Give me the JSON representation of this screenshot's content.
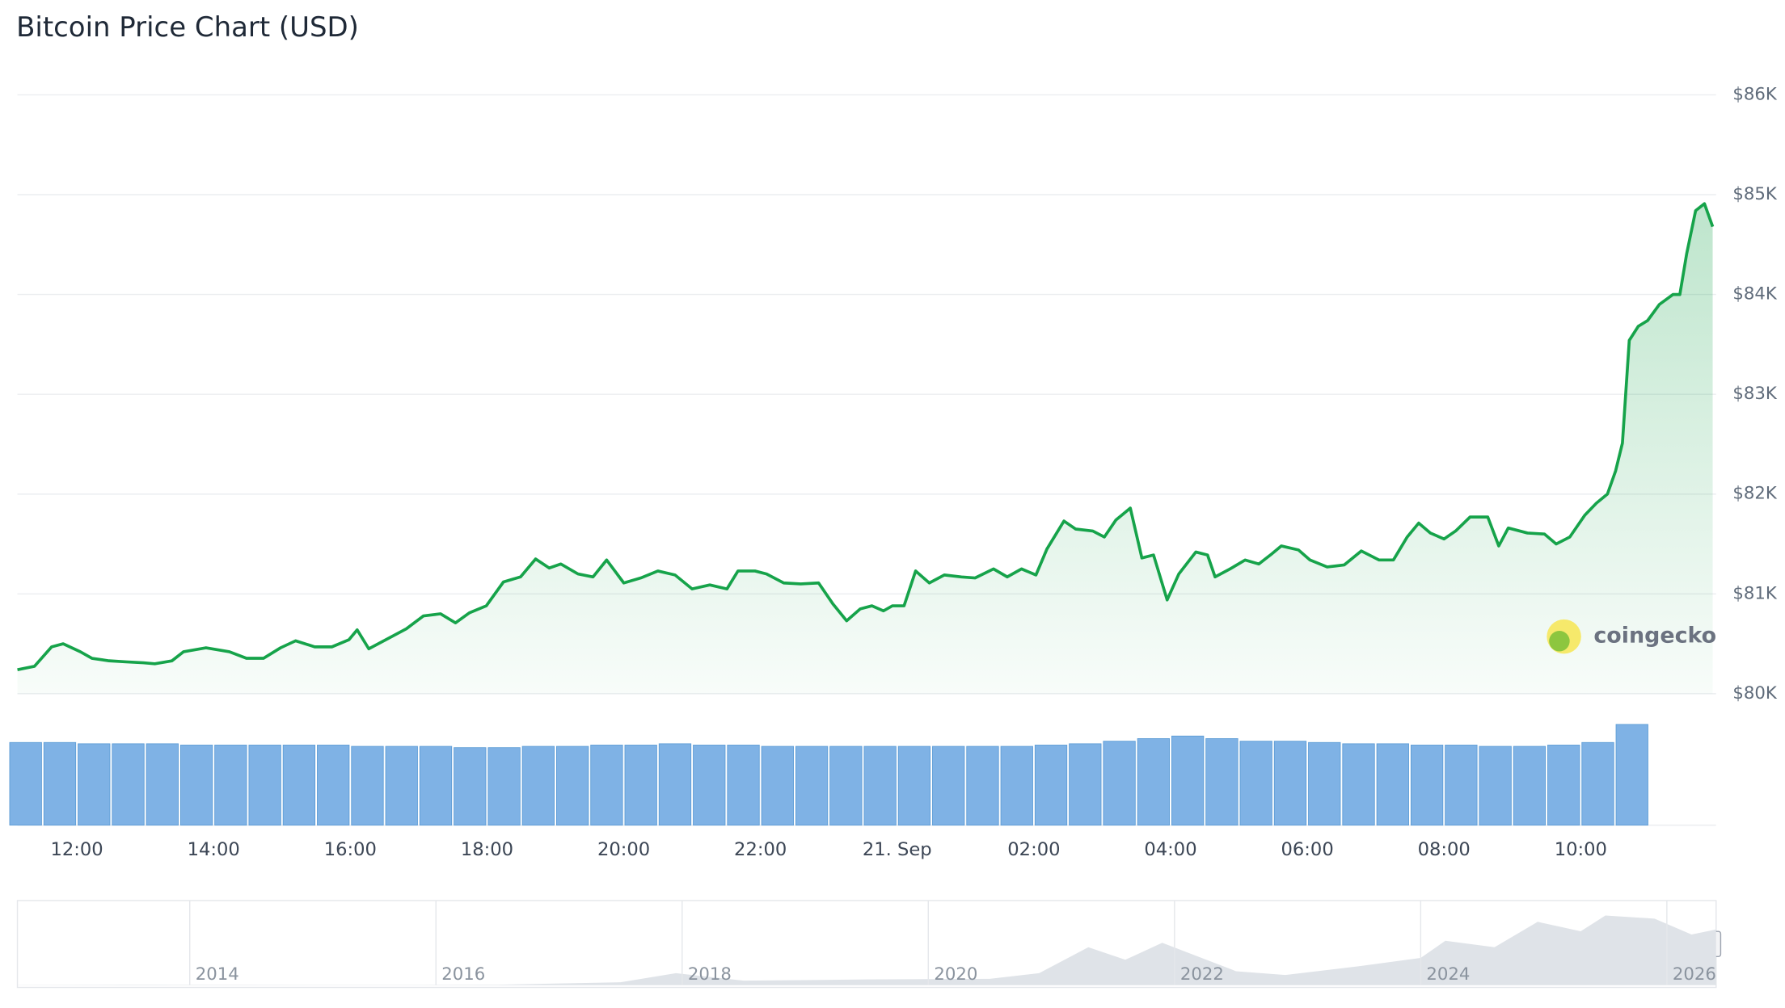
{
  "chart_data": {
    "type": "line",
    "title": "Bitcoin Price Chart (USD)",
    "logo": "coingecko",
    "color": "#16a34a",
    "grid": true,
    "xlim": [
      11.13,
      35.93
    ],
    "xticks": [
      {
        "value": 12,
        "label": "12:00"
      },
      {
        "value": 14,
        "label": "14:00"
      },
      {
        "value": 16,
        "label": "16:00"
      },
      {
        "value": 18,
        "label": "18:00"
      },
      {
        "value": 20,
        "label": "20:00"
      },
      {
        "value": 22,
        "label": "22:00"
      },
      {
        "value": 24,
        "label": "21. Sep"
      },
      {
        "value": 26,
        "label": "02:00"
      },
      {
        "value": 28,
        "label": "04:00"
      },
      {
        "value": 30,
        "label": "06:00"
      },
      {
        "value": 32,
        "label": "08:00"
      },
      {
        "value": 34,
        "label": "10:00"
      }
    ],
    "ylim": [
      80000,
      86000
    ],
    "yticks": [
      {
        "value": 80000,
        "label": "$80K"
      },
      {
        "value": 81000,
        "label": "$81K"
      },
      {
        "value": 82000,
        "label": "$82K"
      },
      {
        "value": 83000,
        "label": "$83K"
      },
      {
        "value": 84000,
        "label": "$84K"
      },
      {
        "value": 85000,
        "label": "$85K"
      },
      {
        "value": 86000,
        "label": "$86K"
      }
    ],
    "x": [
      11.13,
      11.38,
      11.63,
      11.8,
      12.05,
      12.22,
      12.47,
      12.72,
      12.97,
      13.14,
      13.39,
      13.56,
      13.89,
      14.23,
      14.48,
      14.73,
      14.98,
      15.2,
      15.48,
      15.73,
      15.98,
      16.1,
      16.27,
      16.57,
      16.82,
      17.07,
      17.32,
      17.54,
      17.74,
      17.99,
      18.24,
      18.49,
      18.71,
      18.91,
      19.08,
      19.33,
      19.55,
      19.75,
      20.0,
      20.25,
      20.5,
      20.75,
      21.0,
      21.26,
      21.51,
      21.67,
      21.92,
      22.09,
      22.34,
      22.59,
      22.85,
      23.06,
      23.26,
      23.46,
      23.63,
      23.8,
      23.93,
      24.1,
      24.27,
      24.47,
      24.69,
      24.94,
      25.14,
      25.41,
      25.61,
      25.82,
      26.03,
      26.19,
      26.44,
      26.61,
      26.86,
      27.03,
      27.2,
      27.41,
      27.58,
      27.75,
      27.95,
      28.12,
      28.37,
      28.54,
      28.65,
      28.87,
      29.09,
      29.29,
      29.46,
      29.62,
      29.87,
      30.04,
      30.29,
      30.54,
      30.79,
      31.05,
      31.26,
      31.46,
      31.63,
      31.8,
      32.0,
      32.17,
      32.38,
      32.64,
      32.8,
      32.94,
      33.22,
      33.47,
      33.64,
      33.84,
      34.06,
      34.23,
      34.39,
      34.51,
      34.61,
      34.71,
      34.84,
      34.98,
      35.15,
      35.35,
      35.45,
      35.55,
      35.68,
      35.81,
      35.93
    ],
    "series": [
      {
        "name": "Price",
        "color": "#16a34a",
        "values": [
          80240,
          80275,
          80470,
          80500,
          80420,
          80355,
          80330,
          80320,
          80310,
          80300,
          80330,
          80420,
          80460,
          80420,
          80355,
          80355,
          80460,
          80530,
          80470,
          80470,
          80540,
          80640,
          80450,
          80560,
          80650,
          80780,
          80800,
          80710,
          80810,
          80880,
          81120,
          81170,
          81350,
          81260,
          81300,
          81200,
          81170,
          81340,
          81110,
          81160,
          81230,
          81190,
          81050,
          81090,
          81050,
          81230,
          81230,
          81200,
          81110,
          81100,
          81110,
          80900,
          80730,
          80850,
          80880,
          80830,
          80880,
          80880,
          81230,
          81110,
          81190,
          81170,
          81160,
          81250,
          81170,
          81250,
          81190,
          81450,
          81730,
          81650,
          81630,
          81570,
          81740,
          81860,
          81360,
          81390,
          80940,
          81200,
          81420,
          81390,
          81170,
          81250,
          81340,
          81300,
          81390,
          81480,
          81440,
          81340,
          81270,
          81290,
          81430,
          81340,
          81340,
          81570,
          81710,
          81610,
          81550,
          81630,
          81770,
          81770,
          81480,
          81660,
          81610,
          81600,
          81500,
          81570,
          81790,
          81910,
          82000,
          82230,
          82510,
          83540,
          83680,
          83740,
          83900,
          84000,
          84000,
          84410,
          84840,
          84910,
          84680
        ]
      }
    ],
    "volume": {
      "color": "#7fb2e5",
      "vlim": [
        0,
        100
      ],
      "x": [
        11.25,
        11.75,
        12.25,
        12.75,
        13.25,
        13.75,
        14.25,
        14.75,
        15.25,
        15.75,
        16.25,
        16.75,
        17.25,
        17.75,
        18.25,
        18.75,
        19.25,
        19.75,
        20.25,
        20.75,
        21.25,
        21.75,
        22.25,
        22.75,
        23.25,
        23.75,
        24.25,
        24.75,
        25.25,
        25.75,
        26.25,
        26.75,
        27.25,
        27.75,
        28.25,
        28.75,
        29.25,
        29.75,
        30.25,
        30.75,
        31.25,
        31.75,
        32.25,
        32.75,
        33.25,
        33.75,
        34.25,
        34.75
      ],
      "values": [
        64,
        64,
        63,
        63,
        63,
        62,
        62,
        62,
        62,
        62,
        61,
        61,
        61,
        60,
        60,
        61,
        61,
        62,
        62,
        63,
        62,
        62,
        61,
        61,
        61,
        61,
        61,
        61,
        61,
        61,
        62,
        63,
        65,
        67,
        69,
        67,
        65,
        65,
        64,
        63,
        63,
        62,
        62,
        61,
        61,
        62,
        64,
        78
      ]
    },
    "navigator": {
      "color": "#dfe3e8",
      "xlim": [
        2012.6,
        2026.4
      ],
      "ylim": [
        0,
        130000
      ],
      "xticks": [
        2014,
        2016,
        2018,
        2020,
        2022,
        2024,
        2026
      ],
      "x": [
        2012.6,
        2013.5,
        2014.5,
        2015.5,
        2016.5,
        2017.5,
        2017.95,
        2018.5,
        2019.5,
        2020.5,
        2020.9,
        2021.3,
        2021.6,
        2021.9,
        2022.5,
        2022.9,
        2023.5,
        2024.0,
        2024.2,
        2024.6,
        2024.95,
        2025.3,
        2025.5,
        2025.9,
        2026.2,
        2026.4
      ],
      "values": [
        100,
        800,
        500,
        300,
        700,
        4500,
        19000,
        7000,
        9000,
        10000,
        19000,
        60000,
        40000,
        67000,
        22000,
        16000,
        30000,
        43000,
        70000,
        60000,
        100000,
        85000,
        110000,
        105000,
        80000,
        88000
      ]
    }
  }
}
